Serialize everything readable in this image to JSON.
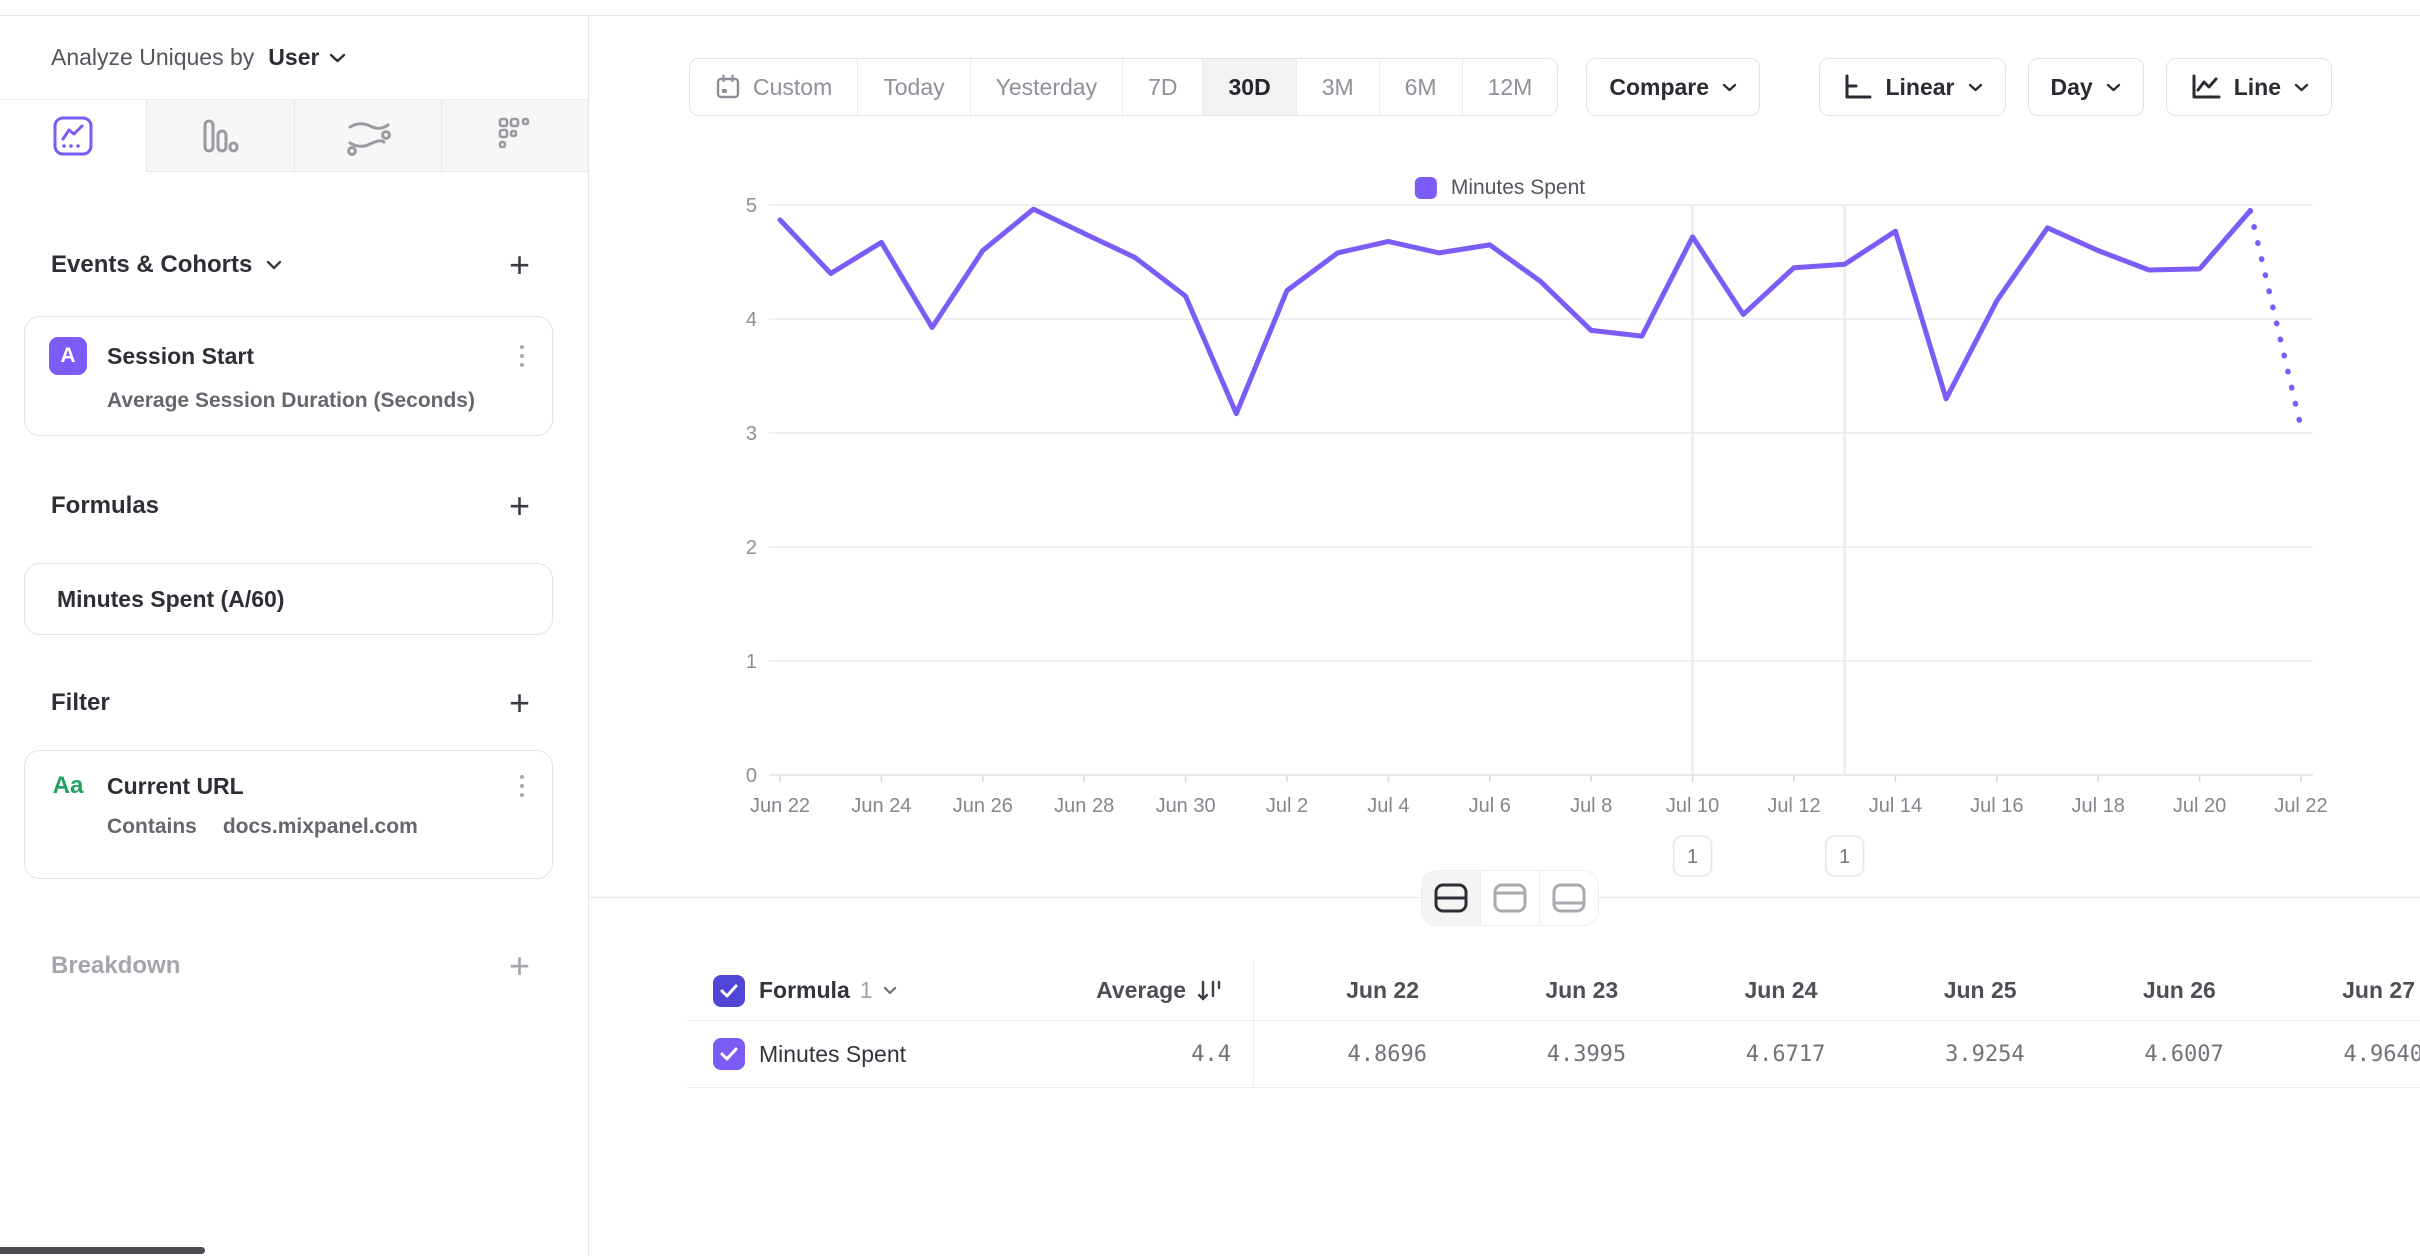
{
  "sidebar": {
    "analyze_label": "Analyze Uniques by",
    "analyze_value": "User",
    "tabs": [
      {
        "icon": "insights-line-chart-icon",
        "selected": true
      },
      {
        "icon": "bar-chart-icon",
        "selected": false
      },
      {
        "icon": "flows-icon",
        "selected": false
      },
      {
        "icon": "retention-grid-icon",
        "selected": false
      }
    ],
    "events_section": {
      "title": "Events & Cohorts",
      "add": "+"
    },
    "event_card": {
      "badge": "A",
      "title": "Session Start",
      "subtitle": "Average Session Duration (Seconds)"
    },
    "formulas_section": {
      "title": "Formulas",
      "add": "+"
    },
    "formula_card": {
      "title": "Minutes Spent (A/60)"
    },
    "filter_section": {
      "title": "Filter",
      "add": "+"
    },
    "filter_card": {
      "badge": "Aa",
      "title": "Current URL",
      "operator": "Contains",
      "value": "docs.mixpanel.com"
    },
    "breakdown_section": {
      "title": "Breakdown",
      "add": "+"
    }
  },
  "toolbar": {
    "date_ranges": [
      "Custom",
      "Today",
      "Yesterday",
      "7D",
      "30D",
      "3M",
      "6M",
      "12M"
    ],
    "selected_range": "30D",
    "compare_label": "Compare",
    "scale_label": "Linear",
    "granularity_label": "Day",
    "chart_type_label": "Line"
  },
  "chart_data": {
    "type": "line",
    "title": "",
    "x": [
      "Jun 22",
      "Jun 23",
      "Jun 24",
      "Jun 25",
      "Jun 26",
      "Jun 27",
      "Jun 28",
      "Jun 29",
      "Jun 30",
      "Jul 1",
      "Jul 2",
      "Jul 3",
      "Jul 4",
      "Jul 5",
      "Jul 6",
      "Jul 7",
      "Jul 8",
      "Jul 9",
      "Jul 10",
      "Jul 11",
      "Jul 12",
      "Jul 13",
      "Jul 14",
      "Jul 15",
      "Jul 16",
      "Jul 17",
      "Jul 18",
      "Jul 19",
      "Jul 20",
      "Jul 21",
      "Jul 22"
    ],
    "series": [
      {
        "name": "Minutes Spent",
        "color": "#7b5cf7",
        "values": [
          4.8696,
          4.3995,
          4.6717,
          3.9254,
          4.6007,
          4.964,
          4.75,
          4.54,
          4.2,
          3.17,
          4.25,
          4.58,
          4.68,
          4.58,
          4.65,
          4.33,
          3.9,
          3.85,
          4.72,
          4.04,
          4.45,
          4.48,
          4.77,
          3.3,
          4.16,
          4.8,
          4.6,
          4.43,
          4.44,
          4.95,
          3.05
        ]
      }
    ],
    "ylim": [
      0,
      5
    ],
    "yticks": [
      0,
      1,
      2,
      3,
      4,
      5
    ],
    "x_label_every": 2,
    "grid": "horizontal",
    "legend_position": "top",
    "last_segment_dotted": true,
    "annotations": [
      {
        "label": "1",
        "x": "Jul 10"
      },
      {
        "label": "1",
        "x": "Jul 13"
      }
    ]
  },
  "table": {
    "series_group_label": "Formula",
    "series_group_number": "1",
    "average_label": "Average",
    "columns": [
      "Jun 22",
      "Jun 23",
      "Jun 24",
      "Jun 25",
      "Jun 26",
      "Jun 27"
    ],
    "rows": [
      {
        "name": "Minutes Spent",
        "average": "4.4",
        "values": [
          "4.8696",
          "4.3995",
          "4.6717",
          "3.9254",
          "4.6007",
          "4.9640"
        ],
        "checked": true
      }
    ]
  },
  "colors": {
    "accent": "#7b5cf7",
    "accent_dark": "#4f46d6",
    "green": "#1ea05f",
    "grid": "#ececef"
  }
}
